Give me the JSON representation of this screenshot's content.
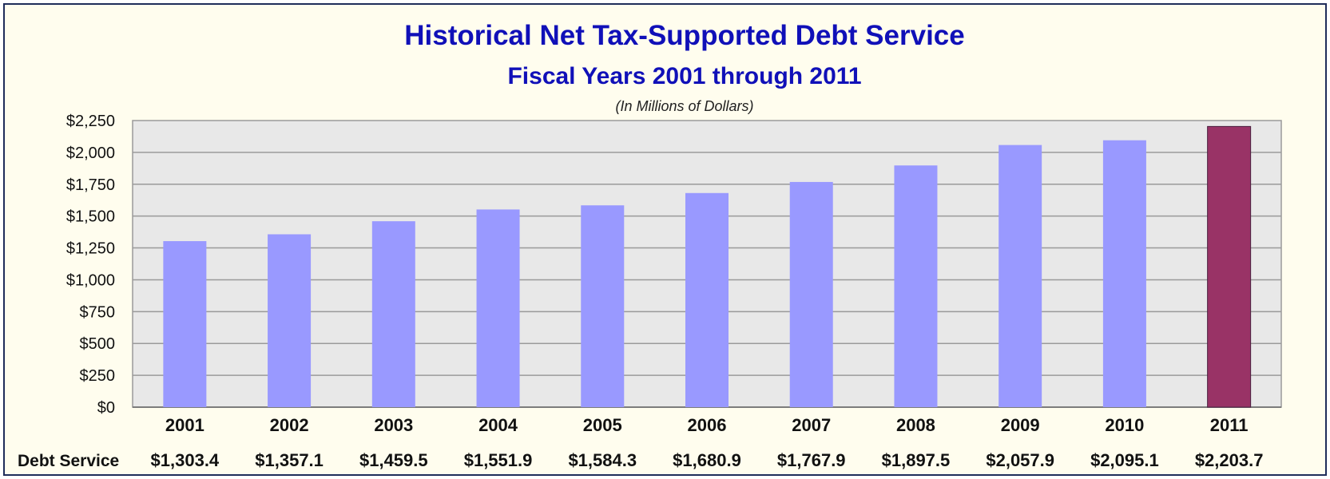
{
  "chart_data": {
    "type": "bar",
    "title": "Historical Net Tax-Supported Debt Service",
    "subtitle": "Fiscal Years 2001 through 2011",
    "units_note": "(In Millions of Dollars)",
    "categories": [
      "2001",
      "2002",
      "2003",
      "2004",
      "2005",
      "2006",
      "2007",
      "2008",
      "2009",
      "2010",
      "2011"
    ],
    "values": [
      1303.4,
      1357.1,
      1459.5,
      1551.9,
      1584.3,
      1680.9,
      1767.9,
      1897.5,
      2057.9,
      2095.1,
      2203.7
    ],
    "value_labels": [
      "$1,303.4",
      "$1,357.1",
      "$1,459.5",
      "$1,551.9",
      "$1,584.3",
      "$1,680.9",
      "$1,767.9",
      "$1,897.5",
      "$2,057.9",
      "$2,095.1",
      "$2,203.7"
    ],
    "series_label": "Debt Service",
    "ylim": [
      0,
      2250
    ],
    "y_ticks": [
      0,
      250,
      500,
      750,
      1000,
      1250,
      1500,
      1750,
      2000,
      2250
    ],
    "y_tick_labels": [
      "$0",
      "$250",
      "$500",
      "$750",
      "$1,000",
      "$1,250",
      "$1,500",
      "$1,750",
      "$2,000",
      "$2,250"
    ],
    "grid": true,
    "bar_color": "#9999ff",
    "highlight_color": "#993366",
    "highlight_category": "2011",
    "frame_background": "#fffdee",
    "title_color": "#1010b8",
    "plot_background": "#e8e8e8"
  }
}
